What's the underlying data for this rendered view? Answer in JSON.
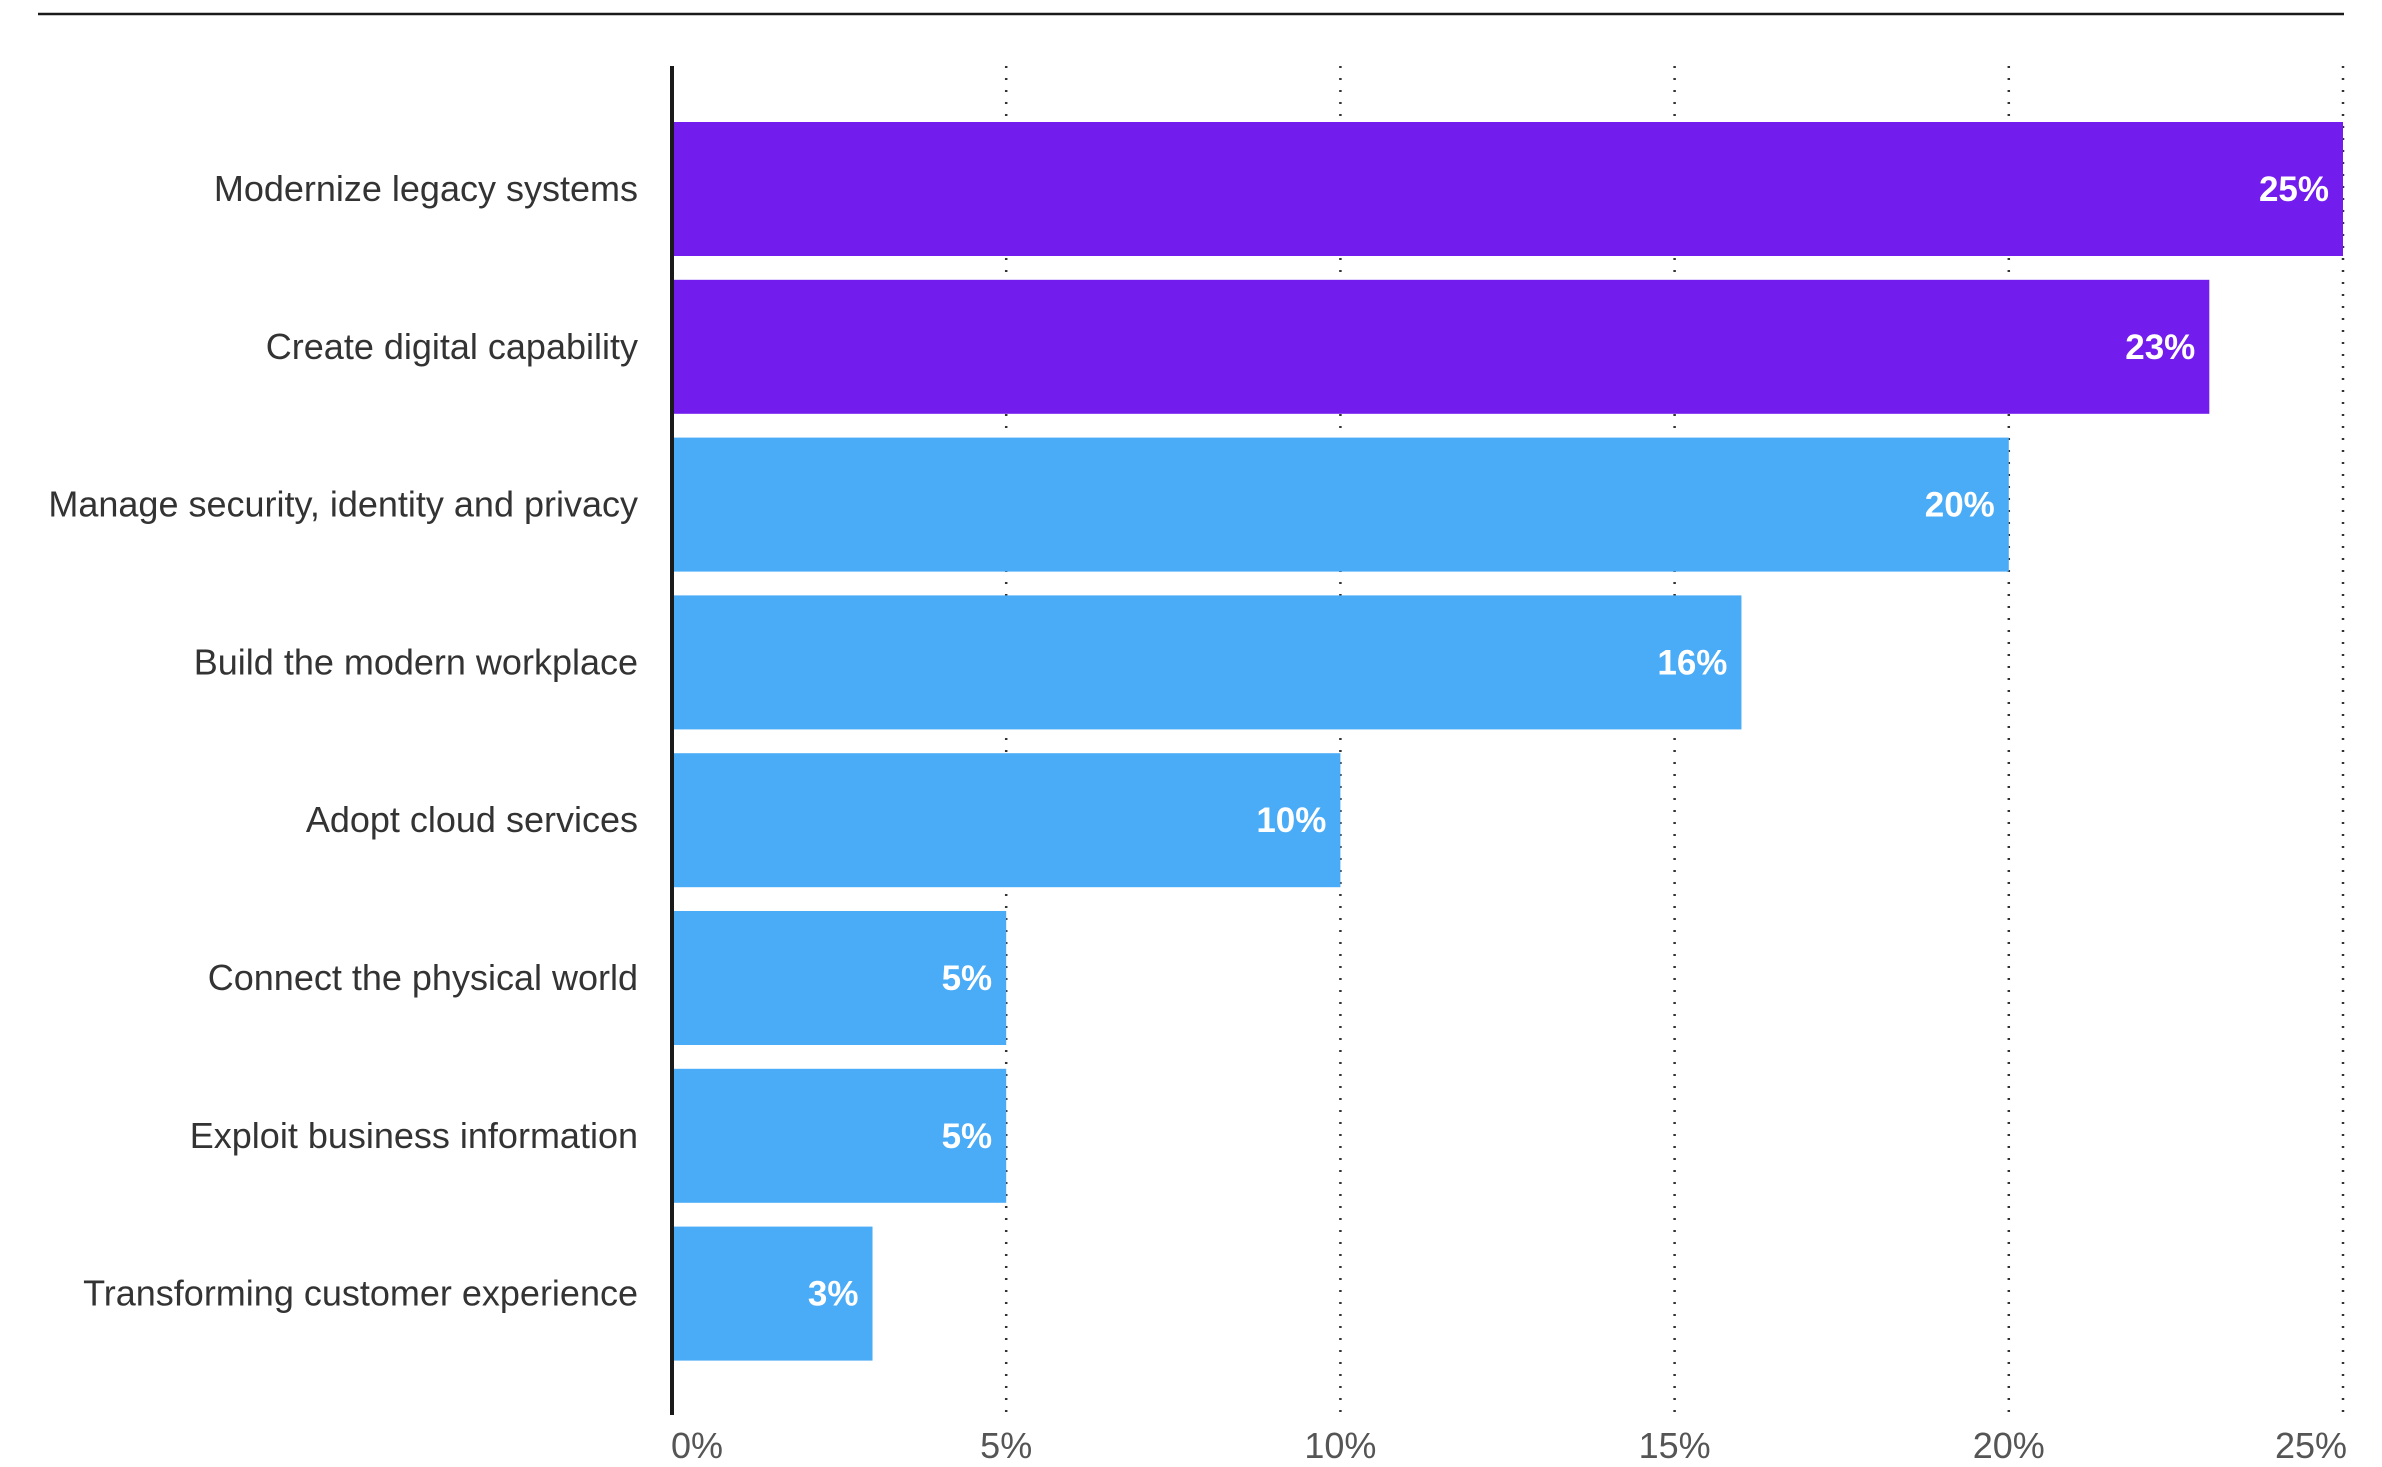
{
  "chart_data": {
    "type": "bar",
    "orientation": "horizontal",
    "categories": [
      "Modernize legacy systems",
      "Create digital capability",
      "Manage security, identity and privacy",
      "Build the modern workplace",
      "Adopt cloud services",
      "Connect the physical world",
      "Exploit business information",
      "Transforming customer experience"
    ],
    "values": [
      25,
      23,
      20,
      16,
      10,
      5,
      5,
      3
    ],
    "value_labels": [
      "25%",
      "23%",
      "20%",
      "16%",
      "10%",
      "5%",
      "5%",
      "3%"
    ],
    "highlighted": [
      true,
      true,
      false,
      false,
      false,
      false,
      false,
      false
    ],
    "xlim": [
      0,
      25
    ],
    "xticks": [
      0,
      5,
      10,
      15,
      20,
      25
    ],
    "xtick_labels": [
      "0%",
      "5%",
      "10%",
      "15%",
      "20%",
      "25%"
    ],
    "grid": "vertical-dotted",
    "colors": {
      "highlight": "#731CEE",
      "bar": "#4AABF7",
      "axis": "#1a1a1a",
      "grid": "#333333",
      "value_text": "#ffffff"
    }
  }
}
